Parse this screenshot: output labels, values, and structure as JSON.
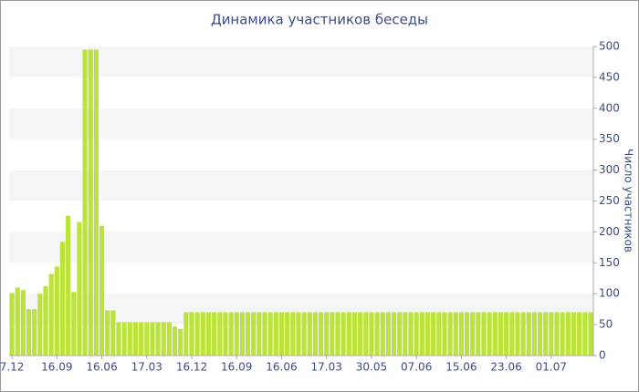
{
  "chart_data": {
    "type": "bar",
    "title": "Динамика участников беседы",
    "y_label": "Число участников",
    "categories": [
      "7.12",
      null,
      null,
      null,
      null,
      null,
      null,
      null,
      "16.09",
      null,
      null,
      null,
      null,
      null,
      null,
      null,
      "16.06",
      null,
      null,
      null,
      null,
      null,
      null,
      null,
      "17.03",
      null,
      null,
      null,
      null,
      null,
      null,
      null,
      "16.12",
      null,
      null,
      null,
      null,
      null,
      null,
      null,
      "16.09",
      null,
      null,
      null,
      null,
      null,
      null,
      null,
      "16.06",
      null,
      null,
      null,
      null,
      null,
      null,
      null,
      "17.03",
      null,
      null,
      null,
      null,
      null,
      null,
      null,
      "30.05",
      null,
      null,
      null,
      null,
      null,
      null,
      null,
      "07.06",
      null,
      null,
      null,
      null,
      null,
      null,
      null,
      "15.06",
      null,
      null,
      null,
      null,
      null,
      null,
      null,
      "23.06",
      null,
      null,
      null,
      null,
      null,
      null,
      null,
      "01.07",
      null,
      null,
      null,
      null,
      null,
      null,
      null
    ],
    "values": [
      101,
      110,
      106,
      75,
      75,
      100,
      112,
      132,
      144,
      184,
      226,
      103,
      216,
      495,
      495,
      495,
      210,
      73,
      73,
      54,
      54,
      54,
      54,
      54,
      54,
      54,
      54,
      54,
      54,
      47,
      43,
      70,
      70,
      70,
      70,
      70,
      70,
      70,
      70,
      70,
      70,
      70,
      70,
      70,
      70,
      70,
      70,
      70,
      70,
      70,
      70,
      70,
      70,
      70,
      70,
      70,
      70,
      70,
      70,
      70,
      70,
      70,
      70,
      70,
      70,
      70,
      70,
      70,
      70,
      70,
      70,
      70,
      70,
      70,
      70,
      70,
      70,
      70,
      70,
      70,
      70,
      70,
      70,
      70,
      70,
      70,
      70,
      70,
      70,
      70,
      70,
      70,
      70,
      70,
      70,
      70,
      70,
      70,
      70,
      70,
      70,
      70,
      70,
      70
    ],
    "color": "#bbe33b",
    "ylim": [
      0,
      500
    ],
    "yticks": [
      0,
      50,
      100,
      150,
      200,
      250,
      300,
      350,
      400,
      450,
      500
    ],
    "grid": "bands",
    "y_axis_side": "right"
  }
}
